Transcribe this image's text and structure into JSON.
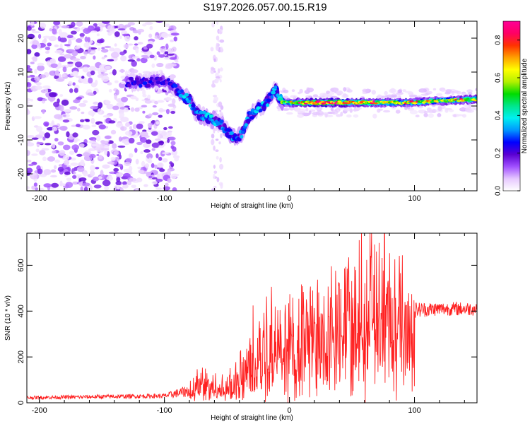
{
  "title": "S197.2026.057.00.15.R19",
  "chart_data": [
    {
      "type": "heatmap",
      "name": "spectrogram",
      "xlabel": "Height of straight line (km)",
      "ylabel": "Frequency (Hz)",
      "xlim": [
        -210,
        150
      ],
      "ylim": [
        -25,
        25
      ],
      "xticks": [
        -200,
        -100,
        0,
        100
      ],
      "yticks": [
        -20,
        -10,
        0,
        10,
        20
      ],
      "colorbar": {
        "label": "Normalized spectral amplitude",
        "range": [
          0.0,
          0.9
        ],
        "ticks": [
          0.0,
          0.2,
          0.4,
          0.6,
          0.8
        ],
        "colors": [
          "#ffffff",
          "#e6c8ff",
          "#a050ff",
          "#5a00d2",
          "#0000ff",
          "#0096ff",
          "#00f0f0",
          "#00e68c",
          "#00dc00",
          "#b4f000",
          "#ffff00",
          "#ffa000",
          "#ff3200",
          "#ff0064",
          "#ff0096"
        ]
      },
      "features": {
        "noise_region_km": [
          -210,
          -90
        ],
        "ridge_points": [
          {
            "x": -130,
            "y": 7,
            "a": 0.2
          },
          {
            "x": -115,
            "y": 7,
            "a": 0.22
          },
          {
            "x": -100,
            "y": 7.5,
            "a": 0.2
          },
          {
            "x": -90,
            "y": 5,
            "a": 0.25
          },
          {
            "x": -85,
            "y": 3,
            "a": 0.3
          },
          {
            "x": -80,
            "y": 2,
            "a": 0.35
          },
          {
            "x": -75,
            "y": -2,
            "a": 0.28
          },
          {
            "x": -68,
            "y": -3,
            "a": 0.3
          },
          {
            "x": -62,
            "y": -4,
            "a": 0.32
          },
          {
            "x": -55,
            "y": -5,
            "a": 0.28
          },
          {
            "x": -48,
            "y": -8,
            "a": 0.3
          },
          {
            "x": -42,
            "y": -10,
            "a": 0.28
          },
          {
            "x": -38,
            "y": -8,
            "a": 0.3
          },
          {
            "x": -32,
            "y": -3,
            "a": 0.3
          },
          {
            "x": -25,
            "y": -1,
            "a": 0.32
          },
          {
            "x": -18,
            "y": 1,
            "a": 0.3
          },
          {
            "x": -12,
            "y": 5,
            "a": 0.3
          },
          {
            "x": -5,
            "y": 1,
            "a": 0.5
          },
          {
            "x": 20,
            "y": 1,
            "a": 0.75
          },
          {
            "x": 45,
            "y": 1,
            "a": 0.7
          },
          {
            "x": 70,
            "y": 1,
            "a": 0.6
          },
          {
            "x": 95,
            "y": 1,
            "a": 0.55
          },
          {
            "x": 120,
            "y": 1.5,
            "a": 0.55
          },
          {
            "x": 150,
            "y": 2,
            "a": 0.6
          }
        ]
      }
    },
    {
      "type": "line",
      "name": "snr",
      "xlabel": "Height of straight line (km)",
      "ylabel": "SNR (10 * v/v)",
      "xlim": [
        -210,
        150
      ],
      "ylim": [
        0,
        740
      ],
      "xticks": [
        -200,
        -100,
        0,
        100
      ],
      "yticks": [
        0,
        200,
        400,
        600
      ],
      "color": "#ff2020",
      "envelope": {
        "x": [
          -210,
          -100,
          -80,
          -75,
          -70,
          -60,
          -50,
          -40,
          -30,
          -20,
          -10,
          0,
          10,
          20,
          30,
          40,
          50,
          60,
          70,
          80,
          90,
          100,
          120,
          150
        ],
        "base": [
          15,
          20,
          25,
          60,
          70,
          50,
          30,
          60,
          140,
          170,
          180,
          200,
          230,
          250,
          280,
          290,
          300,
          310,
          320,
          340,
          360,
          370,
          380,
          380
        ],
        "peak": [
          30,
          40,
          80,
          130,
          150,
          130,
          110,
          200,
          380,
          550,
          430,
          480,
          500,
          560,
          580,
          620,
          630,
          640,
          650,
          560,
          470,
          440,
          440,
          440
        ]
      },
      "spike": {
        "x": 76,
        "y": 740
      }
    }
  ]
}
